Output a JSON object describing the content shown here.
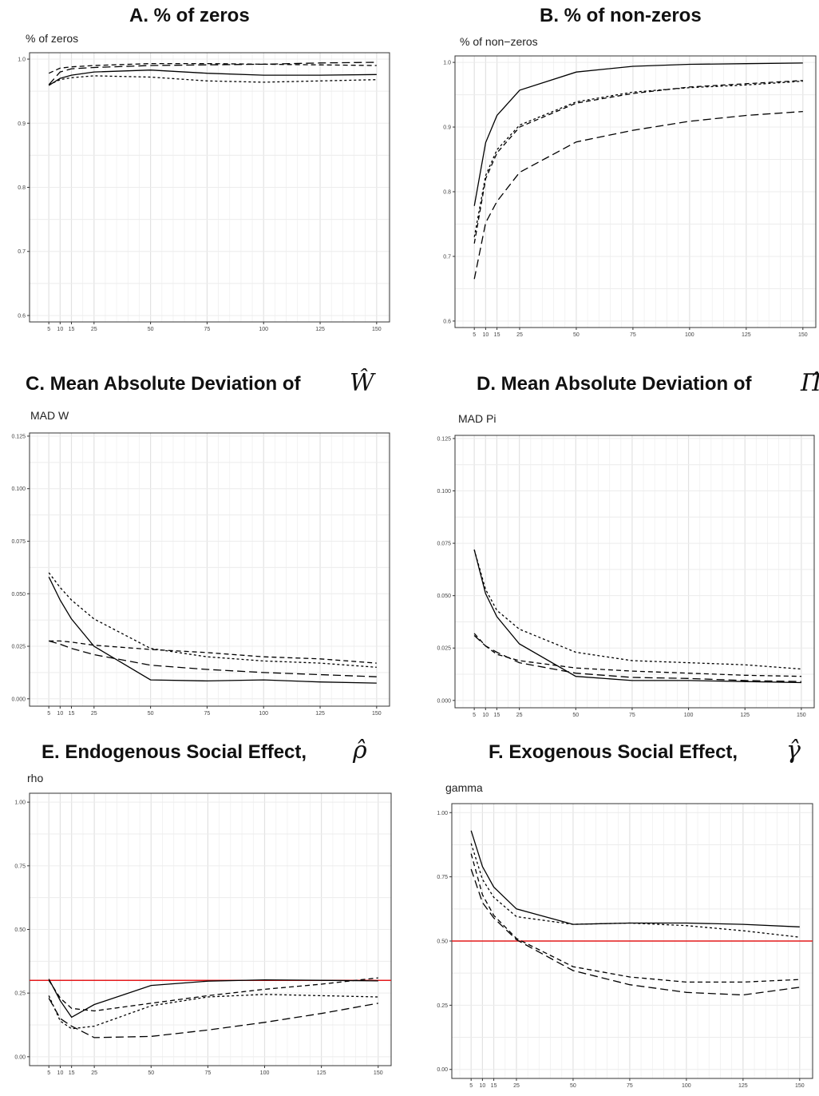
{
  "panels": [
    {
      "title": "A. % of zeros",
      "hat": "",
      "ylabel": "% of zeros"
    },
    {
      "title": "B. % of non-zeros",
      "hat": "",
      "ylabel": "% of non−zeros"
    },
    {
      "title": "C. Mean Absolute Deviation of",
      "hat": "Ŵ",
      "ylabel": "MAD W"
    },
    {
      "title": "D. Mean Absolute Deviation of",
      "hat": "Π̂",
      "ylabel": "MAD Pi"
    },
    {
      "title": "E. Endogenous Social Effect,",
      "hat": "ρ̂",
      "ylabel": "rho"
    },
    {
      "title": "F. Exogenous Social Effect,",
      "hat": "γ̂",
      "ylabel": "gamma"
    }
  ],
  "chart_data": [
    {
      "type": "line",
      "title": "A. % of zeros",
      "ylabel": "% of zeros",
      "xlabel": "",
      "x": [
        5,
        10,
        15,
        25,
        50,
        75,
        100,
        125,
        150
      ],
      "ylim": [
        0.59,
        1.01
      ],
      "yticks": [
        0.6,
        0.7,
        0.8,
        0.9,
        1.0
      ],
      "ytick_labels": [
        "0.6",
        "0.7",
        "0.8",
        "0.9",
        "1.0"
      ],
      "xticks": [
        5,
        10,
        15,
        25,
        50,
        75,
        100,
        125,
        150
      ],
      "grid": true,
      "refline": null,
      "series": [
        {
          "style": "solid",
          "values": [
            0.959,
            0.97,
            0.975,
            0.98,
            0.983,
            0.978,
            0.975,
            0.975,
            0.976
          ]
        },
        {
          "style": "dashed",
          "values": [
            0.978,
            0.986,
            0.988,
            0.99,
            0.993,
            0.993,
            0.992,
            0.991,
            0.99
          ]
        },
        {
          "style": "longdash",
          "values": [
            0.96,
            0.98,
            0.985,
            0.987,
            0.99,
            0.991,
            0.992,
            0.994,
            0.995
          ]
        },
        {
          "style": "dotted",
          "values": [
            0.96,
            0.968,
            0.971,
            0.974,
            0.972,
            0.966,
            0.964,
            0.966,
            0.968
          ]
        }
      ]
    },
    {
      "type": "line",
      "title": "B. % of non-zeros",
      "ylabel": "% of non−zeros",
      "xlabel": "",
      "x": [
        5,
        10,
        15,
        25,
        50,
        75,
        100,
        125,
        150
      ],
      "ylim": [
        0.59,
        1.01
      ],
      "yticks": [
        0.6,
        0.7,
        0.8,
        0.9,
        1.0
      ],
      "ytick_labels": [
        "0.6",
        "0.7",
        "0.8",
        "0.9",
        "1.0"
      ],
      "xticks": [
        5,
        10,
        15,
        25,
        50,
        75,
        100,
        125,
        150
      ],
      "grid": true,
      "refline": null,
      "series": [
        {
          "style": "solid",
          "values": [
            0.778,
            0.876,
            0.918,
            0.957,
            0.985,
            0.994,
            0.997,
            0.998,
            0.999
          ]
        },
        {
          "style": "dashed",
          "values": [
            0.72,
            0.82,
            0.86,
            0.9,
            0.937,
            0.952,
            0.962,
            0.967,
            0.972
          ]
        },
        {
          "style": "dotted",
          "values": [
            0.73,
            0.825,
            0.865,
            0.903,
            0.939,
            0.954,
            0.961,
            0.965,
            0.971
          ]
        },
        {
          "style": "longdash",
          "values": [
            0.665,
            0.752,
            0.785,
            0.83,
            0.877,
            0.895,
            0.909,
            0.918,
            0.924
          ]
        }
      ]
    },
    {
      "type": "line",
      "title": "C. Mean Absolute Deviation of Ŵ",
      "ylabel": "MAD W",
      "xlabel": "",
      "x": [
        5,
        10,
        15,
        25,
        50,
        75,
        100,
        125,
        150
      ],
      "ylim": [
        -0.0035,
        0.1265
      ],
      "yticks": [
        0,
        0.025,
        0.05,
        0.075,
        0.1,
        0.125
      ],
      "ytick_labels": [
        "0.000",
        "0.025",
        "0.050",
        "0.075",
        "0.100",
        "0.125"
      ],
      "xticks": [
        5,
        10,
        15,
        25,
        50,
        75,
        100,
        125,
        150
      ],
      "grid": true,
      "refline": null,
      "series": [
        {
          "style": "solid",
          "values": [
            0.058,
            0.047,
            0.038,
            0.025,
            0.009,
            0.0085,
            0.009,
            0.008,
            0.0075
          ]
        },
        {
          "style": "dotted",
          "values": [
            0.06,
            0.053,
            0.047,
            0.038,
            0.024,
            0.02,
            0.018,
            0.017,
            0.015
          ]
        },
        {
          "style": "dashed",
          "values": [
            0.0275,
            0.0275,
            0.027,
            0.0255,
            0.0235,
            0.022,
            0.02,
            0.019,
            0.017
          ]
        },
        {
          "style": "longdash",
          "values": [
            0.0275,
            0.026,
            0.024,
            0.021,
            0.016,
            0.014,
            0.0125,
            0.0115,
            0.0105
          ]
        }
      ]
    },
    {
      "type": "line",
      "title": "D. Mean Absolute Deviation of Π̂",
      "ylabel": "MAD Pi",
      "xlabel": "",
      "x": [
        5,
        10,
        15,
        25,
        50,
        75,
        100,
        125,
        150
      ],
      "ylim": [
        -0.0035,
        0.1265
      ],
      "yticks": [
        0,
        0.025,
        0.05,
        0.075,
        0.1,
        0.125
      ],
      "ytick_labels": [
        "0.000",
        "0.025",
        "0.050",
        "0.075",
        "0.100",
        "0.125"
      ],
      "xticks": [
        5,
        10,
        15,
        25,
        50,
        75,
        100,
        125,
        150
      ],
      "grid": true,
      "refline": null,
      "series": [
        {
          "style": "solid",
          "values": [
            0.072,
            0.051,
            0.04,
            0.027,
            0.0115,
            0.0095,
            0.0095,
            0.009,
            0.0085
          ]
        },
        {
          "style": "dotted",
          "values": [
            0.072,
            0.053,
            0.043,
            0.034,
            0.023,
            0.019,
            0.018,
            0.017,
            0.015
          ]
        },
        {
          "style": "dashed",
          "values": [
            0.032,
            0.026,
            0.022,
            0.019,
            0.0155,
            0.014,
            0.013,
            0.012,
            0.0115
          ]
        },
        {
          "style": "longdash",
          "values": [
            0.031,
            0.026,
            0.023,
            0.018,
            0.013,
            0.011,
            0.0105,
            0.0095,
            0.009
          ]
        }
      ]
    },
    {
      "type": "line",
      "title": "E. Endogenous Social Effect, ρ̂",
      "ylabel": "rho",
      "xlabel": "",
      "x": [
        5,
        10,
        15,
        25,
        50,
        75,
        100,
        125,
        150
      ],
      "ylim": [
        -0.035,
        1.035
      ],
      "yticks": [
        0,
        0.25,
        0.5,
        0.75,
        1.0
      ],
      "ytick_labels": [
        "0.00",
        "0.25",
        "0.50",
        "0.75",
        "1.00"
      ],
      "xticks": [
        5,
        10,
        15,
        25,
        50,
        75,
        100,
        125,
        150
      ],
      "grid": true,
      "refline": 0.3,
      "series": [
        {
          "style": "solid",
          "values": [
            0.305,
            0.22,
            0.155,
            0.205,
            0.28,
            0.297,
            0.302,
            0.3,
            0.298
          ]
        },
        {
          "style": "dashed",
          "values": [
            0.3,
            0.23,
            0.19,
            0.18,
            0.21,
            0.24,
            0.265,
            0.285,
            0.31
          ]
        },
        {
          "style": "dotted",
          "values": [
            0.24,
            0.14,
            0.11,
            0.12,
            0.2,
            0.235,
            0.245,
            0.24,
            0.235
          ]
        },
        {
          "style": "longdash",
          "values": [
            0.23,
            0.15,
            0.12,
            0.075,
            0.08,
            0.105,
            0.135,
            0.17,
            0.21
          ]
        }
      ]
    },
    {
      "type": "line",
      "title": "F. Exogenous Social Effect, γ̂",
      "ylabel": "gamma",
      "xlabel": "",
      "x": [
        5,
        10,
        15,
        25,
        50,
        75,
        100,
        125,
        150
      ],
      "ylim": [
        -0.035,
        1.035
      ],
      "yticks": [
        0,
        0.25,
        0.5,
        0.75,
        1.0
      ],
      "ytick_labels": [
        "0.00",
        "0.25",
        "0.50",
        "0.75",
        "1.00"
      ],
      "xticks": [
        5,
        10,
        15,
        25,
        50,
        75,
        100,
        125,
        150
      ],
      "grid": true,
      "refline": 0.5,
      "series": [
        {
          "style": "solid",
          "values": [
            0.93,
            0.79,
            0.71,
            0.625,
            0.565,
            0.57,
            0.57,
            0.565,
            0.555
          ]
        },
        {
          "style": "dotted",
          "values": [
            0.88,
            0.74,
            0.67,
            0.595,
            0.565,
            0.57,
            0.56,
            0.54,
            0.515
          ]
        },
        {
          "style": "dashed",
          "values": [
            0.84,
            0.68,
            0.6,
            0.51,
            0.4,
            0.36,
            0.34,
            0.34,
            0.35
          ]
        },
        {
          "style": "longdash",
          "values": [
            0.78,
            0.65,
            0.59,
            0.505,
            0.385,
            0.33,
            0.3,
            0.29,
            0.32
          ]
        }
      ]
    }
  ]
}
